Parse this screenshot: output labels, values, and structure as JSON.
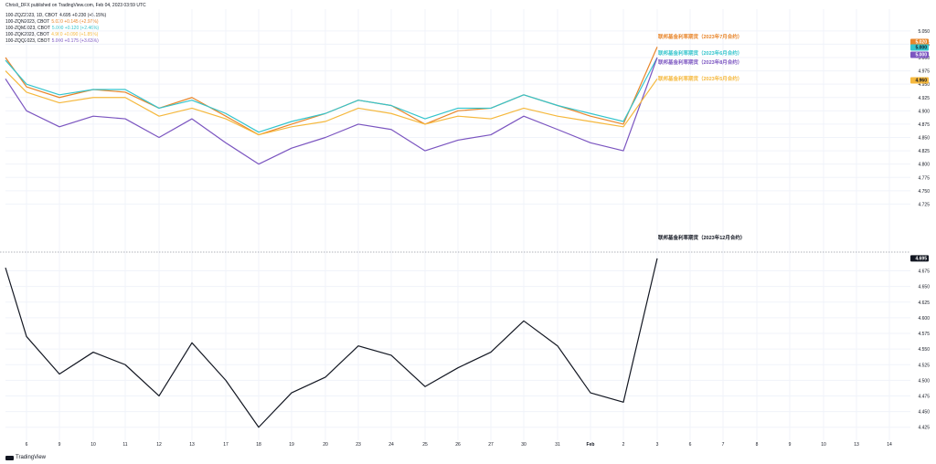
{
  "header": {
    "publisher": "Chrisli_DFX published on TradingView.com, Feb 04, 2023 03:59 UTC"
  },
  "legend": [
    {
      "symbol": "100-ZQZ2023, 1D, CBOT",
      "value": "4.695 +0.230 (+5.15%)",
      "color": "#131722"
    },
    {
      "symbol": "100-ZQN2023, CBOT",
      "value": "5.020 +0.145 (+2.97%)",
      "color": "#e8852a"
    },
    {
      "symbol": "100-ZQM2023, CBOT",
      "value": "5.000 +0.120 (+2.46%)",
      "color": "#34c4cc"
    },
    {
      "symbol": "100-ZQK2023, CBOT",
      "value": "4.960 +0.090 (+1.85%)",
      "color": "#f5b83d"
    },
    {
      "symbol": "100-ZQQ2023, CBOT",
      "value": "5.000 +0.175 (+3.63%)",
      "color": "#7b55c0"
    }
  ],
  "logo": {
    "label": "TradingView"
  },
  "chart_data": [
    {
      "type": "line",
      "panel": "top",
      "x": [
        "5",
        "6",
        "9",
        "10",
        "11",
        "12",
        "13",
        "17",
        "18",
        "19",
        "20",
        "23",
        "24",
        "25",
        "26",
        "27",
        "30",
        "31",
        "Feb",
        "2",
        "3"
      ],
      "ylim": [
        4.7,
        5.06
      ],
      "yticks": [
        "5.050",
        "5.025",
        "5.000",
        "4.975",
        "4.950",
        "4.925",
        "4.900",
        "4.875",
        "4.850",
        "4.825",
        "4.800",
        "4.775",
        "4.750",
        "4.725"
      ],
      "series": [
        {
          "name": "联邦基金利率期货（2023年7月合约）",
          "color": "#e8852a",
          "last_label": "5.020",
          "values": [
            5.0,
            4.945,
            4.925,
            4.94,
            4.935,
            4.905,
            4.925,
            4.89,
            4.855,
            4.875,
            4.895,
            4.92,
            4.91,
            4.875,
            4.9,
            4.905,
            4.93,
            4.91,
            4.89,
            4.875,
            5.02
          ]
        },
        {
          "name": "联邦基金利率期货（2023年6月合约）",
          "color": "#34c4cc",
          "last_label": "5.000",
          "values": [
            4.995,
            4.95,
            4.93,
            4.94,
            4.94,
            4.905,
            4.92,
            4.895,
            4.86,
            4.88,
            4.895,
            4.92,
            4.91,
            4.885,
            4.905,
            4.905,
            4.93,
            4.91,
            4.895,
            4.88,
            5.0
          ]
        },
        {
          "name": "联邦基金利率期货（2023年8月合约）",
          "color": "#7b55c0",
          "last_label": "5.000",
          "values": [
            4.96,
            4.9,
            4.87,
            4.89,
            4.885,
            4.85,
            4.885,
            4.84,
            4.8,
            4.83,
            4.85,
            4.875,
            4.865,
            4.825,
            4.845,
            4.855,
            4.89,
            4.865,
            4.84,
            4.825,
            5.0
          ]
        },
        {
          "name": "联邦基金利率期货（2023年5月合约）",
          "color": "#f5b83d",
          "last_label": "4.960",
          "values": [
            4.975,
            4.935,
            4.915,
            4.925,
            4.925,
            4.89,
            4.905,
            4.885,
            4.855,
            4.87,
            4.88,
            4.905,
            4.895,
            4.875,
            4.89,
            4.885,
            4.905,
            4.89,
            4.88,
            4.87,
            4.96
          ]
        }
      ]
    },
    {
      "type": "line",
      "panel": "bottom",
      "x": [
        "5",
        "6",
        "9",
        "10",
        "11",
        "12",
        "13",
        "17",
        "18",
        "19",
        "20",
        "23",
        "24",
        "25",
        "26",
        "27",
        "30",
        "31",
        "Feb",
        "2",
        "3"
      ],
      "ylim": [
        4.41,
        4.705
      ],
      "yticks": [
        "4.675",
        "4.650",
        "4.625",
        "4.600",
        "4.575",
        "4.550",
        "4.525",
        "4.500",
        "4.475",
        "4.450",
        "4.425"
      ],
      "series": [
        {
          "name": "联邦基金利率期货（2023年12月合约）",
          "color": "#131722",
          "last_label": "4.695",
          "values": [
            4.68,
            4.57,
            4.51,
            4.545,
            4.525,
            4.475,
            4.56,
            4.5,
            4.425,
            4.48,
            4.505,
            4.555,
            4.54,
            4.49,
            4.52,
            4.545,
            4.595,
            4.555,
            4.48,
            4.465,
            4.695
          ]
        }
      ]
    }
  ],
  "xaxis": {
    "ticks": [
      "6",
      "9",
      "10",
      "11",
      "12",
      "13",
      "17",
      "18",
      "19",
      "20",
      "23",
      "24",
      "25",
      "26",
      "27",
      "30",
      "31",
      "Feb",
      "2",
      "3",
      "6",
      "7",
      "8",
      "9",
      "10",
      "13",
      "14"
    ]
  }
}
